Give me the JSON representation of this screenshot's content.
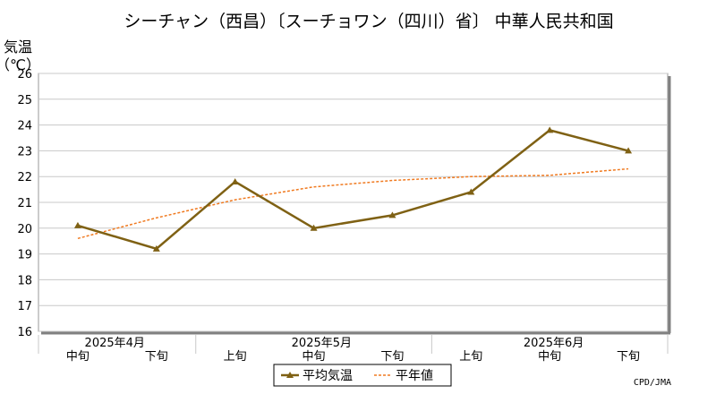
{
  "chart_data": {
    "type": "line",
    "title": "シーチャン（西昌）〔スーチョワン（四川）省〕 中華人民共和国",
    "ylabel_line1": "気温",
    "ylabel_line2": "（℃）",
    "xlabel": "",
    "categories": [
      "中旬",
      "下旬",
      "上旬",
      "中旬",
      "下旬",
      "上旬",
      "中旬",
      "下旬"
    ],
    "month_labels": [
      "2025年4月",
      "2025年5月",
      "2025年6月"
    ],
    "ylim": [
      16,
      26
    ],
    "yticks": [
      16,
      17,
      18,
      19,
      20,
      21,
      22,
      23,
      24,
      25,
      26
    ],
    "grid": true,
    "legend_position": "bottom",
    "series": [
      {
        "name": "平均気温",
        "style": "solid-triangle-markers",
        "color": "#7f6114",
        "values": [
          20.1,
          19.2,
          21.8,
          20.0,
          20.5,
          21.4,
          23.8,
          23.0
        ]
      },
      {
        "name": "平年値",
        "style": "dashed",
        "color": "#f07a20",
        "values": [
          19.6,
          20.4,
          21.1,
          21.6,
          21.85,
          22.0,
          22.05,
          22.3
        ]
      }
    ],
    "credit": "CPD/JMA"
  }
}
